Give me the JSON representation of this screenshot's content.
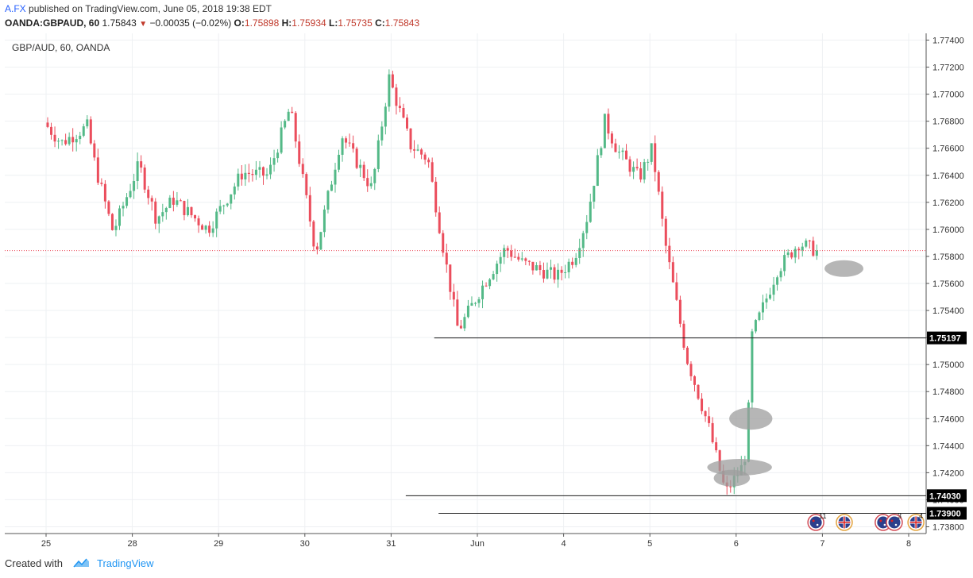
{
  "header": {
    "author": "A.FX",
    "published_text": "published on TradingView.com, June 05, 2018 19:38 EDT",
    "symbol": "OANDA:GBPAUD, 60",
    "last": "1.75843",
    "change": "−0.00035 (−0.02%)",
    "o_label": "O:",
    "o_value": "1.75898",
    "h_label": "H:",
    "h_value": "1.75934",
    "l_label": "L:",
    "l_value": "1.75735",
    "c_label": "C:",
    "c_value": "1.75843"
  },
  "footer": {
    "created_with": "Created with",
    "brand": "TradingView"
  },
  "colors": {
    "up": "#53b987",
    "down": "#eb4d5c",
    "grid": "#eef0f3",
    "line": "#1c1c1c",
    "marker": "#9e9e9e",
    "current": "#eb4d5c"
  },
  "chart_data": {
    "type": "candlestick",
    "title": "GBP/AUD, 60, OANDA",
    "ylim": [
      1.7375,
      1.7745
    ],
    "y_ticks": [
      "1.77400",
      "1.77200",
      "1.77000",
      "1.76800",
      "1.76600",
      "1.76400",
      "1.76200",
      "1.76000",
      "1.75800",
      "1.75600",
      "1.75400",
      "1.75200",
      "1.75000",
      "1.74800",
      "1.74600",
      "1.74400",
      "1.74200",
      "1.74000",
      "1.73800"
    ],
    "x_ticks": [
      "25",
      "28",
      "29",
      "30",
      "31",
      "Jun",
      "4",
      "5",
      "6",
      "7",
      "8"
    ],
    "current_price": 1.75843,
    "horizontal_levels": [
      {
        "label": "1.75197",
        "value": 1.75197,
        "from_day": 4.5
      },
      {
        "label": "1.74030",
        "value": 1.7403,
        "from_day": 4.17
      },
      {
        "label": "1.73900",
        "value": 1.739,
        "from_day": 4.55
      }
    ],
    "highlight_zones": [
      {
        "day": 9.25,
        "price": 1.7571,
        "days_w": 0.45,
        "price_h": 0.001
      },
      {
        "day": 8.17,
        "price": 1.746,
        "days_w": 0.5,
        "price_h": 0.0014
      },
      {
        "day": 8.04,
        "price": 1.7424,
        "days_w": 0.75,
        "price_h": 0.001
      },
      {
        "day": 7.95,
        "price": 1.7416,
        "days_w": 0.42,
        "price_h": 0.001
      }
    ],
    "event_markers": [
      {
        "day": 8.97,
        "flag": "AU",
        "count": "11"
      },
      {
        "day": 9.3,
        "flag": "GB",
        "count": ""
      },
      {
        "day": 9.75,
        "flag": "AU",
        "count": ""
      },
      {
        "day": 9.88,
        "flag": "AU",
        "count": "3"
      },
      {
        "day": 10.13,
        "flag": "GB",
        "count": "4"
      }
    ],
    "key_points": [
      [
        0.0,
        1.7679
      ],
      [
        0.2,
        1.7664
      ],
      [
        0.5,
        1.7676
      ],
      [
        0.6,
        1.7645
      ],
      [
        0.8,
        1.7598
      ],
      [
        1.1,
        1.7648
      ],
      [
        1.3,
        1.7608
      ],
      [
        1.5,
        1.7622
      ],
      [
        1.9,
        1.76
      ],
      [
        2.3,
        1.7642
      ],
      [
        2.6,
        1.764
      ],
      [
        2.85,
        1.769
      ],
      [
        3.15,
        1.7583
      ],
      [
        3.45,
        1.767
      ],
      [
        3.8,
        1.763
      ],
      [
        4.0,
        1.7712
      ],
      [
        4.25,
        1.7662
      ],
      [
        4.45,
        1.7652
      ],
      [
        4.65,
        1.7578
      ],
      [
        4.8,
        1.7525
      ],
      [
        5.1,
        1.756
      ],
      [
        5.35,
        1.7586
      ],
      [
        5.55,
        1.7575
      ],
      [
        5.95,
        1.7565
      ],
      [
        6.15,
        1.758
      ],
      [
        6.3,
        1.761
      ],
      [
        6.5,
        1.768
      ],
      [
        6.65,
        1.7658
      ],
      [
        6.9,
        1.7638
      ],
      [
        7.05,
        1.766
      ],
      [
        7.2,
        1.759
      ],
      [
        7.45,
        1.7505
      ],
      [
        7.7,
        1.7455
      ],
      [
        7.9,
        1.7405
      ],
      [
        8.1,
        1.7425
      ],
      [
        8.15,
        1.744
      ],
      [
        8.2,
        1.752
      ],
      [
        8.35,
        1.7545
      ],
      [
        8.5,
        1.757
      ],
      [
        8.75,
        1.759
      ],
      [
        8.95,
        1.75843
      ]
    ]
  }
}
